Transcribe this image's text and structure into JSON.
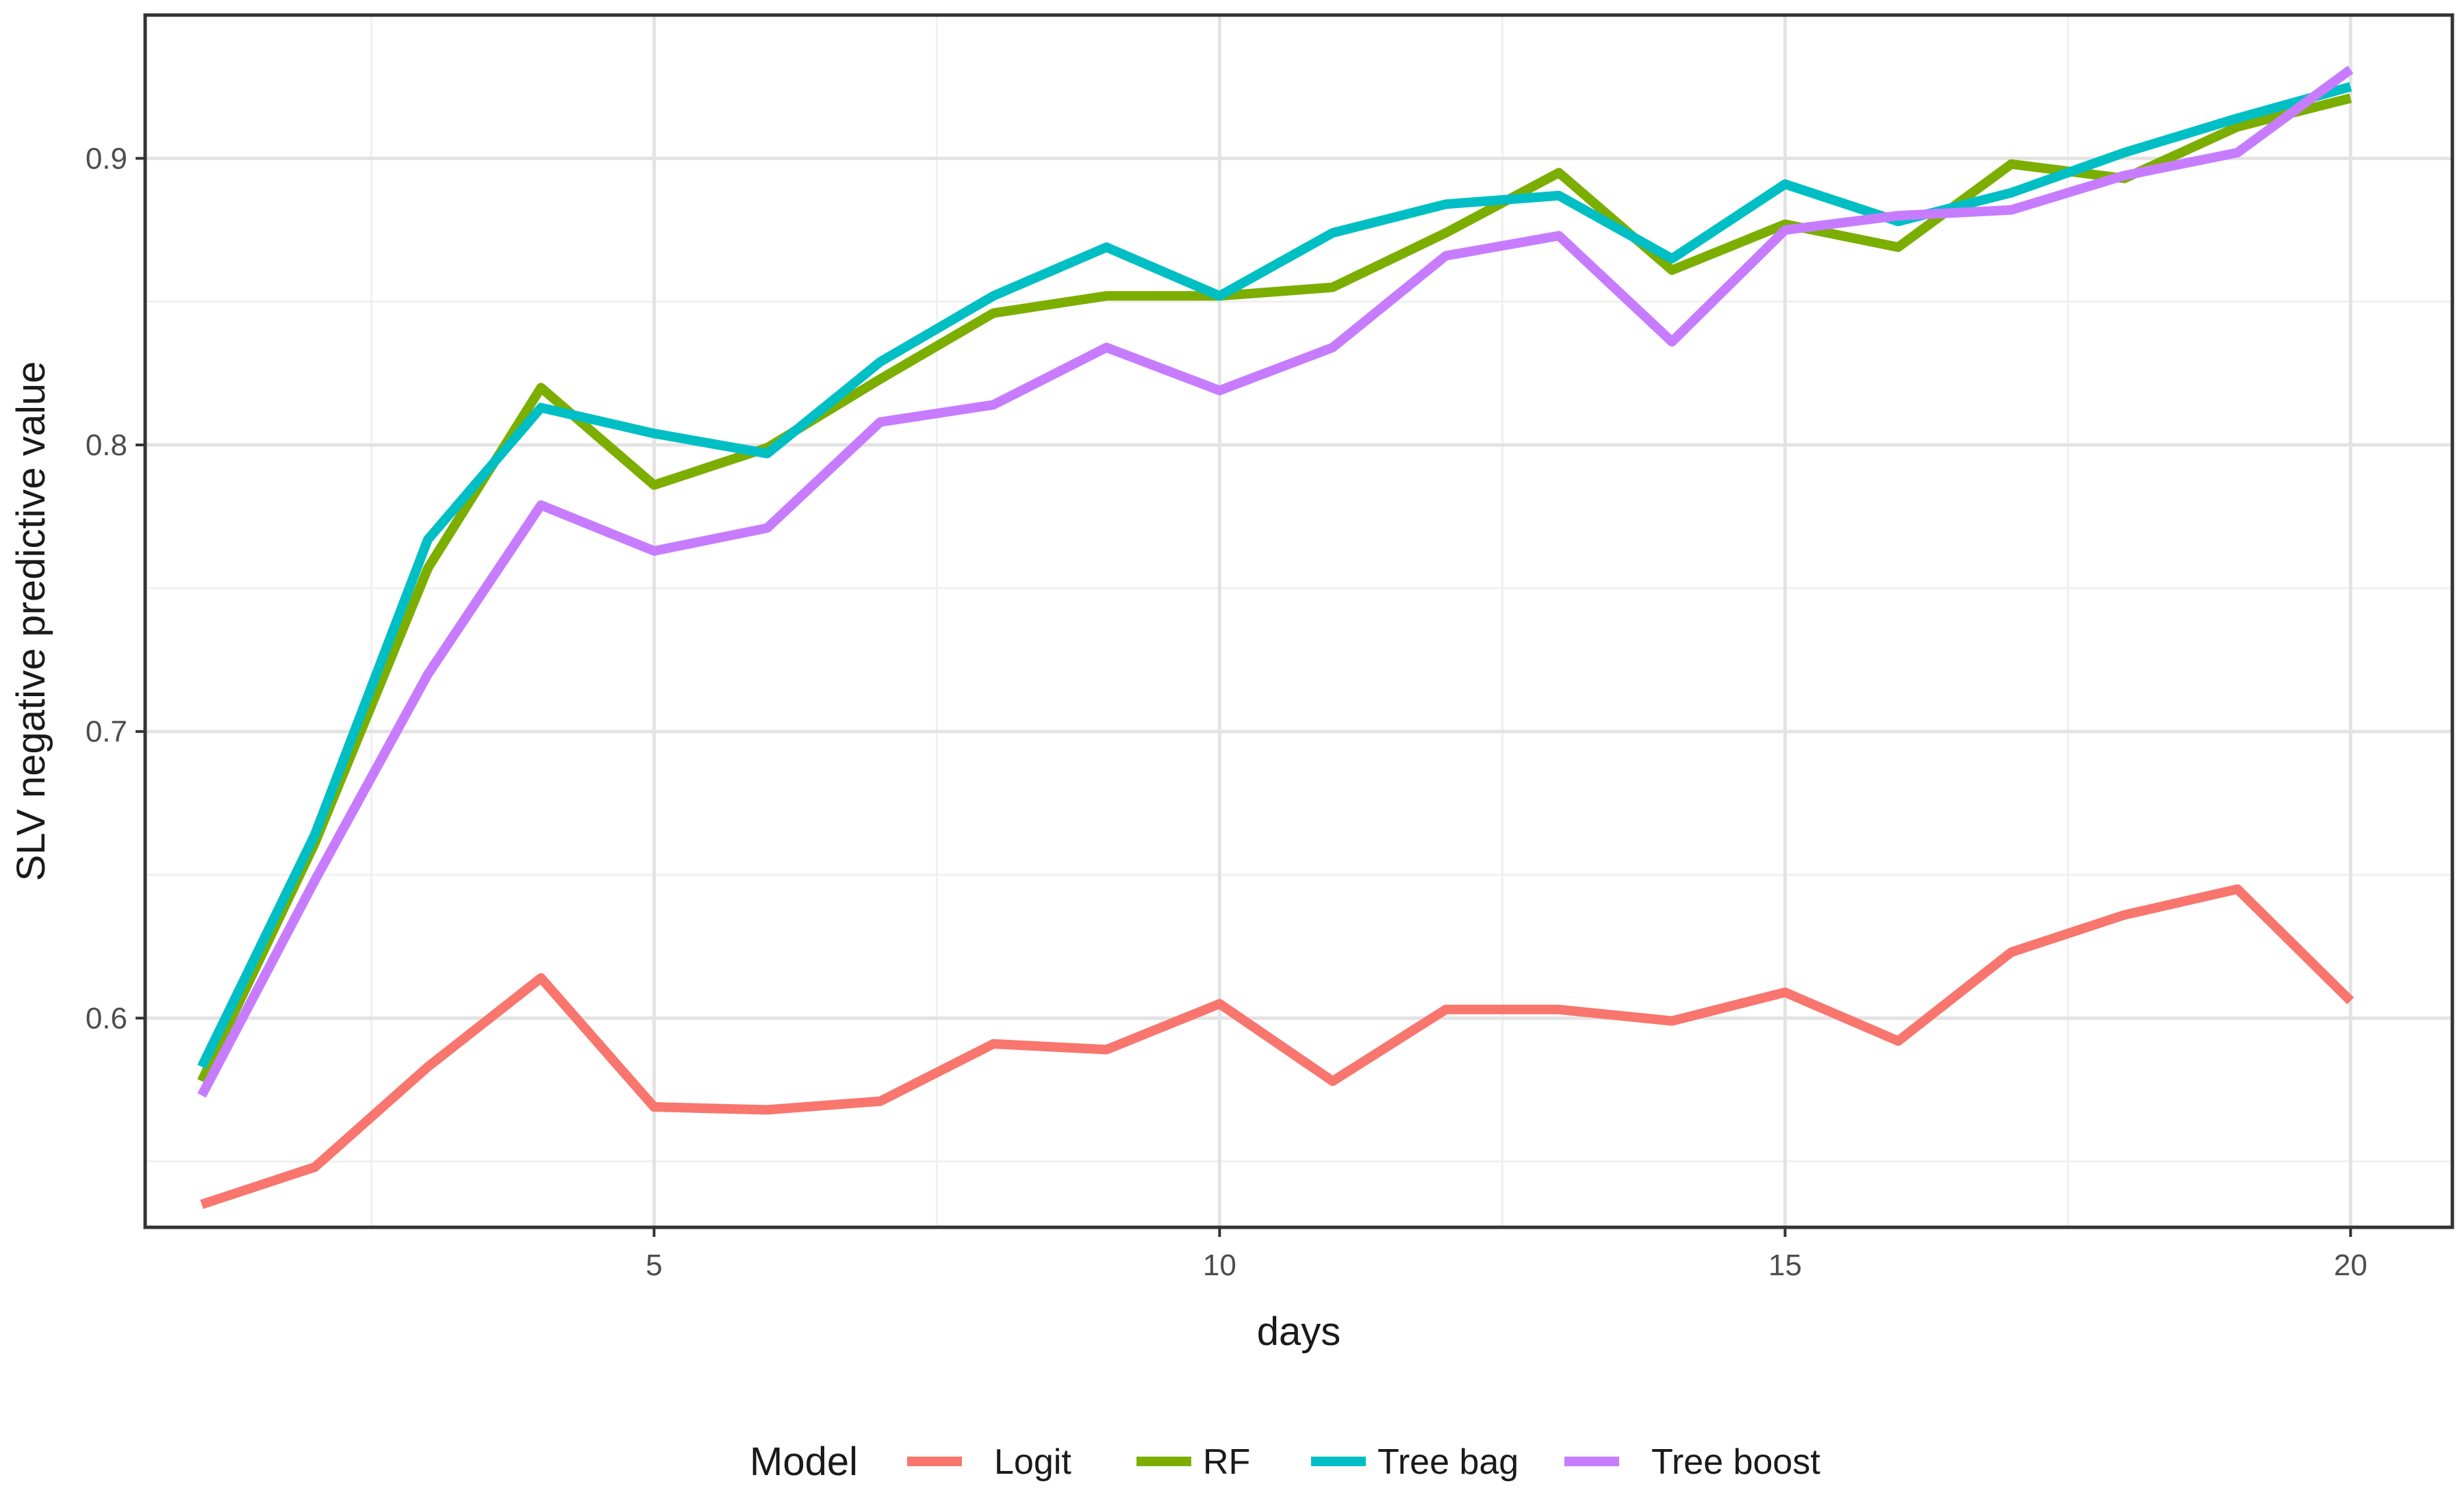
{
  "chart_data": {
    "type": "line",
    "title": "",
    "xlabel": "days",
    "ylabel": "SLV negative predictive value",
    "xlim": [
      0.5,
      20.9
    ],
    "ylim": [
      0.527,
      0.95
    ],
    "x_ticks": [
      5,
      10,
      15,
      20
    ],
    "x_minor_ticks": [
      2.5,
      7.5,
      12.5,
      17.5
    ],
    "y_ticks": [
      0.6,
      0.7,
      0.8,
      0.9
    ],
    "y_minor_ticks": [
      0.55,
      0.65,
      0.75,
      0.85
    ],
    "grid": true,
    "legend": {
      "title": "Model",
      "placement": "bottom"
    },
    "x": [
      1,
      2,
      3,
      4,
      5,
      6,
      7,
      8,
      9,
      10,
      11,
      12,
      13,
      14,
      15,
      16,
      17,
      18,
      19,
      20
    ],
    "series": [
      {
        "name": "Logit",
        "color": "#F8766D",
        "values": [
          0.535,
          0.548,
          0.583,
          0.614,
          0.569,
          0.568,
          0.571,
          0.591,
          0.589,
          0.605,
          0.578,
          0.603,
          0.603,
          0.599,
          0.609,
          0.592,
          0.623,
          0.636,
          0.645,
          0.606
        ]
      },
      {
        "name": "RF",
        "color": "#7CAE00",
        "values": [
          0.578,
          0.661,
          0.757,
          0.82,
          0.786,
          0.799,
          0.823,
          0.846,
          0.852,
          0.852,
          0.855,
          0.874,
          0.895,
          0.861,
          0.877,
          0.869,
          0.898,
          0.893,
          0.911,
          0.921
        ]
      },
      {
        "name": "Tree bag",
        "color": "#00BFC4",
        "values": [
          0.583,
          0.664,
          0.767,
          0.813,
          0.804,
          0.797,
          0.829,
          0.852,
          0.869,
          0.852,
          0.874,
          0.884,
          0.887,
          0.865,
          0.891,
          0.878,
          0.888,
          0.902,
          0.914,
          0.925
        ]
      },
      {
        "name": "Tree boost",
        "color": "#C77CFF",
        "values": [
          0.573,
          0.648,
          0.72,
          0.779,
          0.763,
          0.771,
          0.808,
          0.814,
          0.834,
          0.819,
          0.834,
          0.866,
          0.873,
          0.836,
          0.875,
          0.88,
          0.882,
          0.894,
          0.902,
          0.931
        ]
      }
    ]
  }
}
